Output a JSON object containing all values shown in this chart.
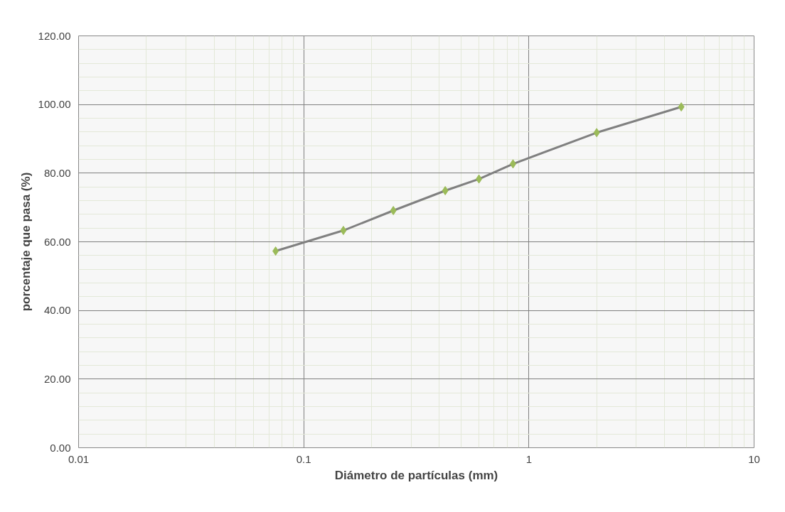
{
  "chart_data": {
    "type": "line",
    "xlabel": "Diámetro de partículas (mm)",
    "ylabel": "porcentaje que pasa (%)",
    "x": [
      0.075,
      0.15,
      0.25,
      0.425,
      0.6,
      0.85,
      2.0,
      4.75
    ],
    "series": [
      {
        "color": "#9bbb59",
        "values": [
          57.3,
          63.3,
          69.1,
          74.9,
          78.3,
          82.7,
          91.8,
          99.3
        ]
      }
    ],
    "log": "x",
    "xlim": [
      0.01,
      10
    ],
    "xticks": [
      0.01,
      0.1,
      1,
      10
    ],
    "ylim": [
      0,
      120
    ],
    "yticks": [
      {
        "value": 0,
        "label": "0.00"
      },
      {
        "value": 20,
        "label": "20.00"
      },
      {
        "value": 40,
        "label": "40.00"
      },
      {
        "value": 60,
        "label": "60.00"
      },
      {
        "value": 80,
        "label": "80.00"
      },
      {
        "value": 100,
        "label": "100.00"
      },
      {
        "value": 120,
        "label": "120.00"
      }
    ],
    "grid": true,
    "marker": "diamond",
    "line_style": "solid"
  }
}
